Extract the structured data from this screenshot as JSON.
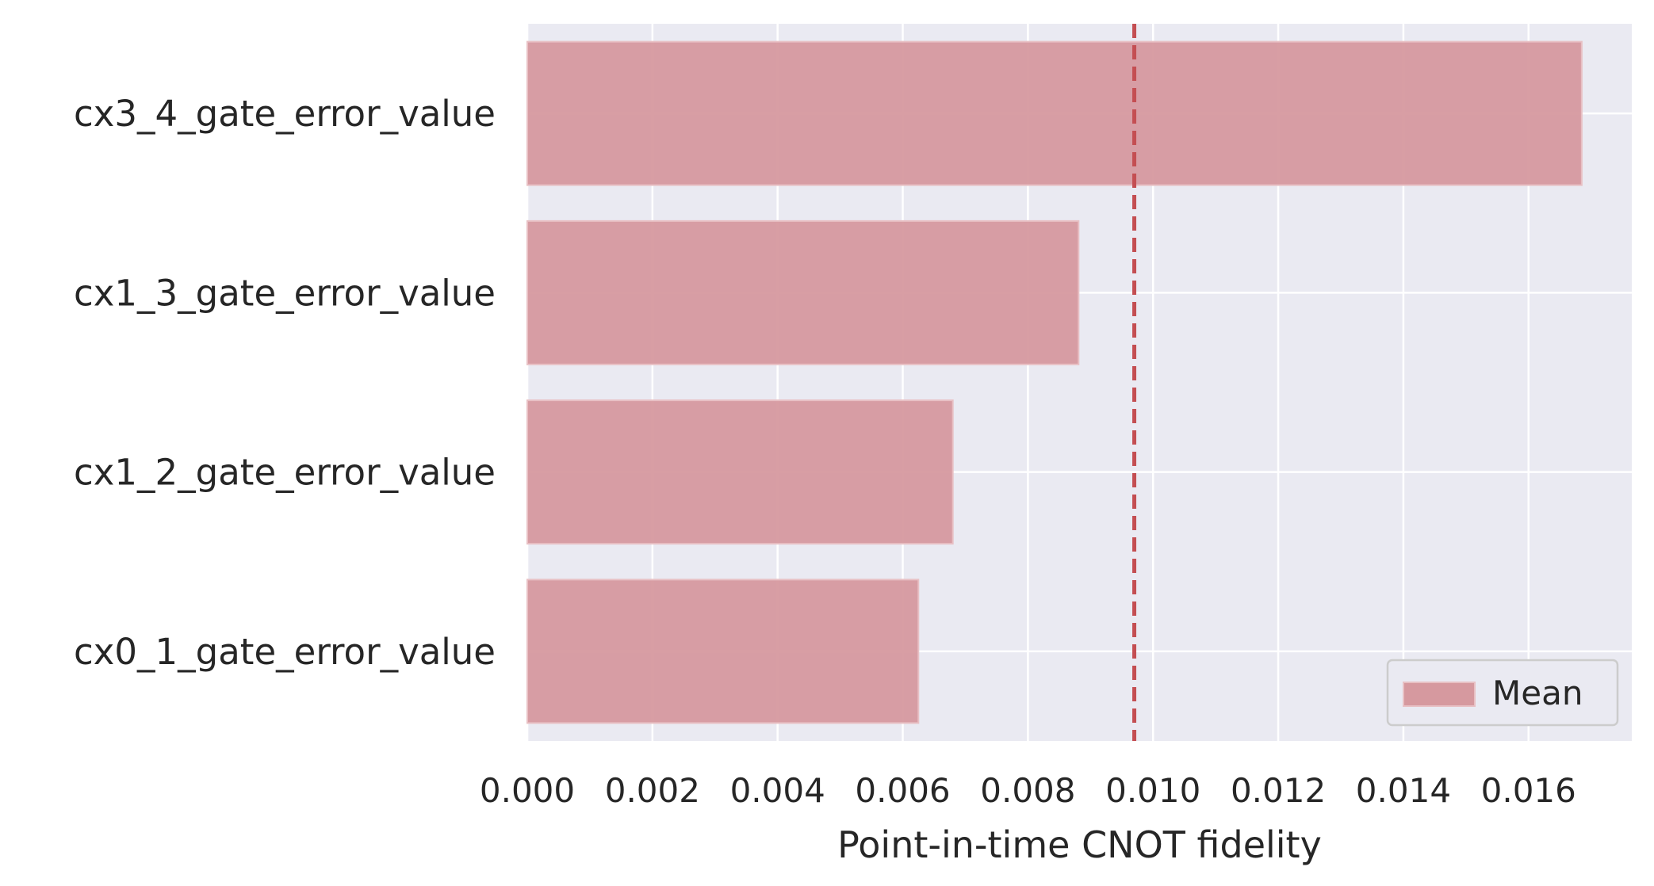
{
  "chart_data": {
    "type": "bar",
    "orientation": "horizontal",
    "categories": [
      "cx3_4_gate_error_value",
      "cx1_3_gate_error_value",
      "cx1_2_gate_error_value",
      "cx0_1_gate_error_value"
    ],
    "series": [
      {
        "name": "Mean",
        "values": [
          0.01685,
          0.00881,
          0.0068,
          0.00625
        ]
      }
    ],
    "reference_line": {
      "value": 0.0097,
      "style": "dashed"
    },
    "xlabel": "Point-in-time CNOT fidelity",
    "ylabel": "",
    "title": "",
    "xlim": [
      0,
      0.01765
    ],
    "xticks": [
      0.0,
      0.002,
      0.004,
      0.006,
      0.008,
      0.01,
      0.012,
      0.014,
      0.016
    ],
    "xtick_labels": [
      "0.000",
      "0.002",
      "0.004",
      "0.006",
      "0.008",
      "0.010",
      "0.012",
      "0.014",
      "0.016"
    ],
    "grid": true,
    "legend_placement": "bottom-right",
    "colors": {
      "bar_fill": "#d6999f",
      "bar_edge": "#e8c0c4",
      "reference_line": "#c44e52",
      "plot_background": "#eaeaf2",
      "grid": "#ffffff"
    }
  }
}
